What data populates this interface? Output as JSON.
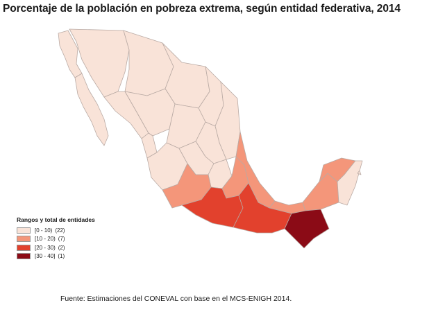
{
  "title": "Porcentaje de la población en pobreza extrema, según entidad federativa, 2014",
  "legend": {
    "title": "Rangos y total de entidades",
    "items": [
      {
        "range": "[0 - 10)",
        "count": "(22)",
        "color": "#f9e3d8"
      },
      {
        "range": "[10 - 20)",
        "count": "(7)",
        "color": "#f4967a"
      },
      {
        "range": "[20 - 30)",
        "count": "(2)",
        "color": "#e2412d"
      },
      {
        "range": "[30 - 40]",
        "count": "(1)",
        "color": "#8b0b16"
      }
    ]
  },
  "source": "Fuente: Estimaciones del CONEVAL con base en el MCS-ENIGH 2014.",
  "colors": {
    "border": "#b9aaa4",
    "light": "#f9e3d8",
    "mid": "#f4967a",
    "high": "#e2412d",
    "top": "#8b0b16"
  }
}
